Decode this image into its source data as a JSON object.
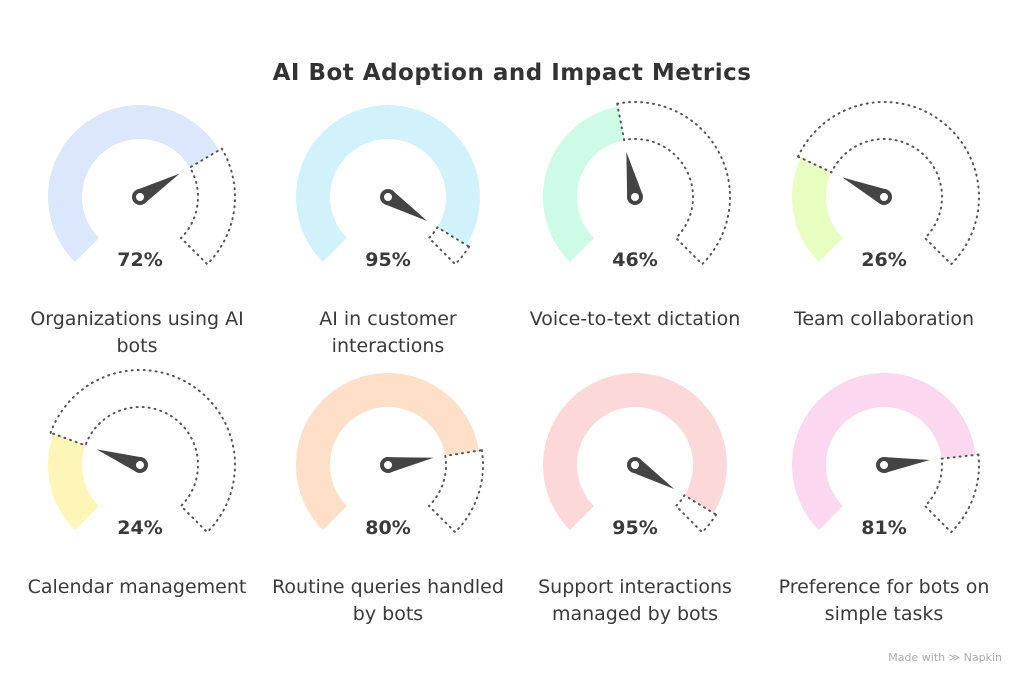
{
  "title": "AI Bot Adoption and Impact Metrics",
  "gauges": [
    {
      "label": "Organizations using AI bots",
      "value_text": "72%",
      "value": 72,
      "color": "#dbe7fd"
    },
    {
      "label": "AI in customer interactions",
      "value_text": "95%",
      "value": 95,
      "color": "#d2f2fb"
    },
    {
      "label": "Voice-to-text dictation",
      "value_text": "46%",
      "value": 46,
      "color": "#cdfbe6"
    },
    {
      "label": "Team collaboration",
      "value_text": "26%",
      "value": 26,
      "color": "#e8fdc0"
    },
    {
      "label": "Calendar management",
      "value_text": "24%",
      "value": 24,
      "color": "#fef6b9"
    },
    {
      "label": "Routine queries handled by bots",
      "value_text": "80%",
      "value": 80,
      "color": "#fedfc7"
    },
    {
      "label": "Support interactions managed by bots",
      "value_text": "95%",
      "value": 95,
      "color": "#fdd8d8"
    },
    {
      "label": "Preference for bots on simple tasks",
      "value_text": "81%",
      "value": 81,
      "color": "#fcd7f0"
    }
  ],
  "needle_color": "#444444",
  "footer": {
    "text": "Made with",
    "brand": "Napkin"
  }
}
